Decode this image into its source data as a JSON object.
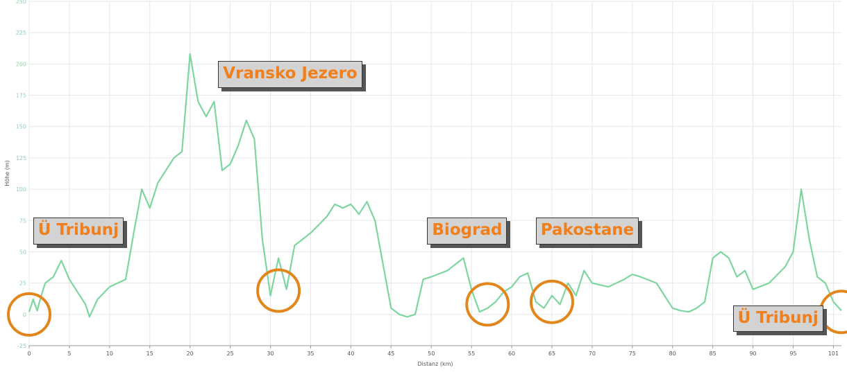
{
  "chart_data": {
    "type": "line",
    "xlabel": "Distanz (km)",
    "ylabel": "Höhe (m)",
    "xlim": [
      0,
      101
    ],
    "ylim": [
      -25,
      250
    ],
    "xticks": [
      0,
      5,
      10,
      15,
      20,
      25,
      30,
      35,
      40,
      45,
      50,
      55,
      60,
      65,
      70,
      75,
      80,
      85,
      90,
      95,
      100
    ],
    "xtick_labels": [
      "0",
      "5",
      "10",
      "15",
      "20",
      "25",
      "30",
      "35",
      "40",
      "45",
      "50",
      "55",
      "60",
      "65",
      "70",
      "75",
      "80",
      "85",
      "90",
      "95",
      "101"
    ],
    "yticks": [
      -25,
      0,
      25,
      50,
      75,
      100,
      125,
      150,
      175,
      200,
      225,
      250
    ],
    "grid": true,
    "line_color": "#7dd6a0",
    "series": [
      {
        "x": [
          0,
          0.5,
          1,
          1.5,
          2,
          3,
          4,
          5,
          6,
          7,
          7.5,
          8.5,
          10,
          12,
          13,
          14,
          15,
          16,
          17,
          18,
          19,
          20,
          21,
          22,
          23,
          24,
          25,
          26,
          27,
          28,
          29,
          30,
          31,
          32,
          33,
          34,
          35,
          37,
          38,
          39,
          40,
          41,
          42,
          43,
          44,
          45,
          46,
          47,
          48,
          49,
          50,
          52,
          54,
          55,
          56,
          57,
          58,
          59,
          60,
          61,
          62,
          63,
          64,
          65,
          66,
          67,
          68,
          69,
          70,
          72,
          74,
          75,
          76,
          78,
          80,
          81,
          82,
          83,
          84,
          85,
          86,
          87,
          88,
          89,
          90,
          92,
          94,
          95,
          96,
          97,
          98,
          99,
          100,
          101
        ],
        "y": [
          2,
          12,
          3,
          15,
          25,
          30,
          43,
          28,
          18,
          8,
          -2,
          12,
          22,
          28,
          65,
          100,
          85,
          105,
          115,
          125,
          130,
          208,
          170,
          158,
          170,
          115,
          120,
          135,
          155,
          140,
          60,
          15,
          45,
          20,
          55,
          60,
          65,
          78,
          88,
          85,
          88,
          80,
          90,
          75,
          40,
          5,
          0,
          -2,
          0,
          28,
          30,
          35,
          45,
          20,
          2,
          5,
          10,
          18,
          22,
          30,
          33,
          10,
          5,
          15,
          8,
          25,
          15,
          35,
          25,
          22,
          28,
          32,
          30,
          25,
          5,
          3,
          2,
          5,
          10,
          45,
          50,
          45,
          30,
          35,
          20,
          25,
          38,
          50,
          100,
          60,
          30,
          25,
          10,
          3
        ]
      }
    ],
    "annotations": [
      {
        "text": "Vransko Jezero",
        "x": 23.5,
        "y": 190
      },
      {
        "text": "Ü Tribunj",
        "x": 0.5,
        "y": 65
      },
      {
        "text": "Biograd",
        "x": 49.5,
        "y": 65
      },
      {
        "text": "Pakostane",
        "x": 63,
        "y": 65
      },
      {
        "text": "Ü Tribunj",
        "x": 87.5,
        "y": -5
      }
    ],
    "highlights": [
      {
        "x": 0,
        "y": 0
      },
      {
        "x": 31,
        "y": 19
      },
      {
        "x": 57,
        "y": 8
      },
      {
        "x": 65,
        "y": 10
      },
      {
        "x": 101,
        "y": 2
      }
    ],
    "highlight_color": "#e2861c"
  }
}
